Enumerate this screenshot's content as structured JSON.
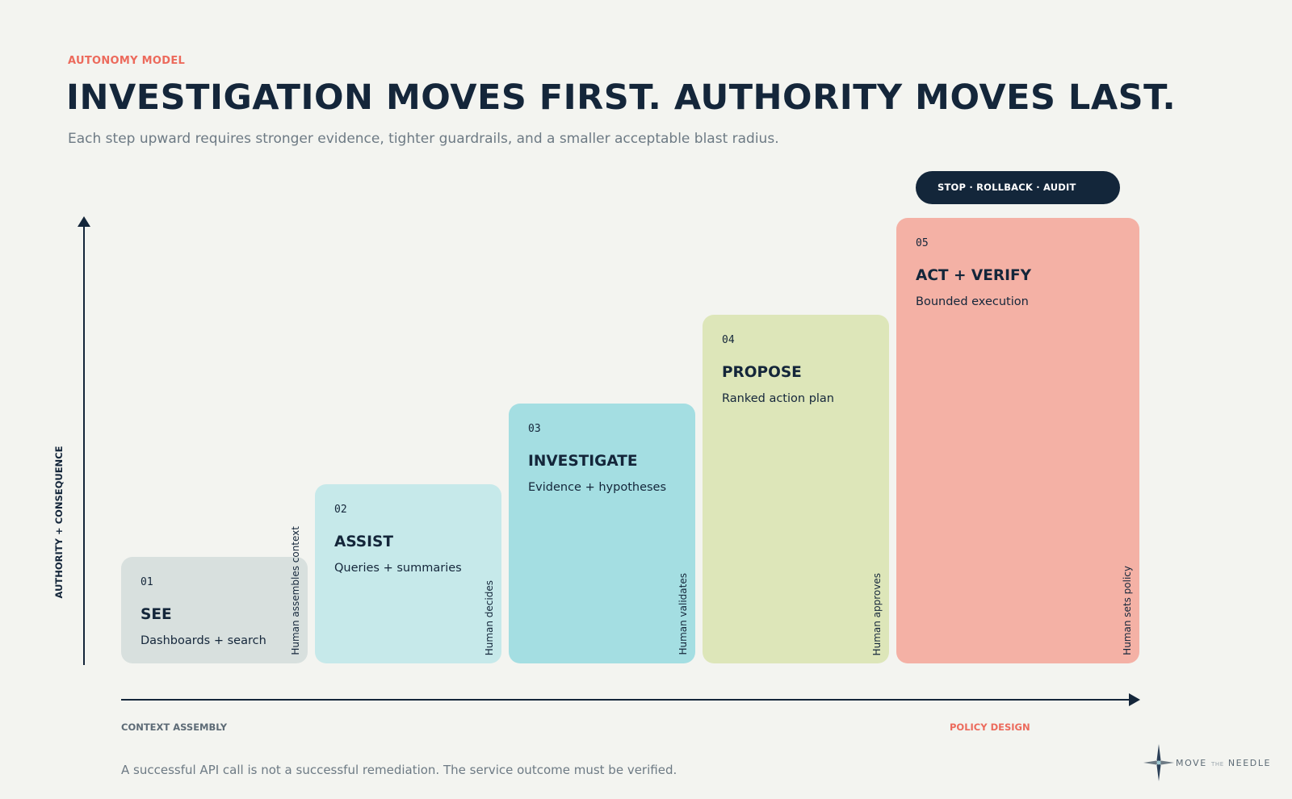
{
  "header": {
    "eyebrow": "AUTONOMY MODEL",
    "title": "INVESTIGATION MOVES FIRST. AUTHORITY MOVES LAST.",
    "subtitle": "Each step upward requires stronger evidence, tighter guardrails, and a smaller acceptable blast radius."
  },
  "axes": {
    "y_label": "AUTHORITY + CONSEQUENCE",
    "x_left": "CONTEXT ASSEMBLY",
    "x_right": "POLICY DESIGN"
  },
  "badge": "STOP · ROLLBACK · AUDIT",
  "steps": [
    {
      "num": "01",
      "title": "SEE",
      "desc": "Dashboards + search",
      "side": "Human assembles context",
      "color": "#d8e0de"
    },
    {
      "num": "02",
      "title": "ASSIST",
      "desc": "Queries + summaries",
      "side": "Human decides",
      "color": "#c6e9ea"
    },
    {
      "num": "03",
      "title": "INVESTIGATE",
      "desc": "Evidence + hypotheses",
      "side": "Human validates",
      "color": "#a4dee2"
    },
    {
      "num": "04",
      "title": "PROPOSE",
      "desc": "Ranked action plan",
      "side": "Human approves",
      "color": "#dde6b9"
    },
    {
      "num": "05",
      "title": "ACT + VERIFY",
      "desc": "Bounded execution",
      "side": "Human sets policy",
      "color": "#f4b1a5"
    }
  ],
  "footnote": "A successful API call is not a successful remediation. The service outcome must be verified.",
  "brand": {
    "left": "MOVE",
    "small": "THE",
    "right": "NEEDLE"
  },
  "colors": {
    "navy": "#13263a",
    "coral": "#ec6a5c",
    "muted": "#6d7a84",
    "background": "#f3f4f0"
  }
}
